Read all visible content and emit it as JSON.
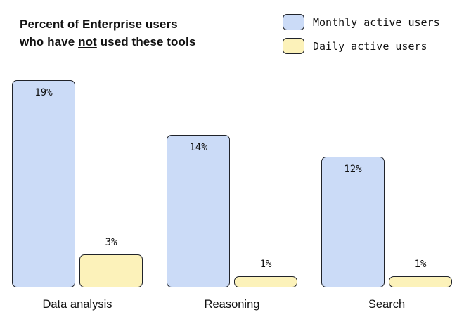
{
  "title": {
    "line1": "Percent of Enterprise users",
    "line2_pre": "who have ",
    "line2_underline": "not",
    "line2_post": " used these tools"
  },
  "legend": [
    {
      "label": "Monthly active users",
      "color": "#cbdbf7"
    },
    {
      "label": "Daily active users",
      "color": "#fcf2ba"
    }
  ],
  "chart_data": {
    "type": "bar",
    "title": "Percent of Enterprise users who have not used these tools",
    "categories": [
      "Data analysis",
      "Reasoning",
      "Search"
    ],
    "series": [
      {
        "name": "Monthly active users",
        "color": "#cbdbf7",
        "values": [
          19,
          14,
          12
        ]
      },
      {
        "name": "Daily active users",
        "color": "#fcf2ba",
        "values": [
          3,
          1,
          1
        ]
      }
    ],
    "value_labels": [
      [
        "19%",
        "3%"
      ],
      [
        "14%",
        "1%"
      ],
      [
        "12%",
        "1%"
      ]
    ],
    "ylim": [
      0,
      20
    ],
    "grid": false,
    "legend_position": "top-right",
    "value_label_placement": {
      "monthly": "inside-top",
      "daily": "above-bar"
    }
  }
}
